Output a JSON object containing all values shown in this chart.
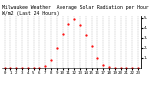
{
  "title": "Milwaukee Weather  Average Solar Radiation per Hour W/m2 (Last 24 Hours)",
  "background_color": "#ffffff",
  "line_color": "red",
  "grid_color": "#999999",
  "hours": [
    0,
    1,
    2,
    3,
    4,
    5,
    6,
    7,
    8,
    9,
    10,
    11,
    12,
    13,
    14,
    15,
    16,
    17,
    18,
    19,
    20,
    21,
    22,
    23
  ],
  "values": [
    0,
    0,
    0,
    0,
    0,
    0,
    2,
    15,
    80,
    200,
    340,
    440,
    490,
    430,
    330,
    220,
    100,
    30,
    5,
    0,
    0,
    0,
    0,
    0
  ],
  "ylim": [
    0,
    520
  ],
  "title_fontsize": 3.5,
  "tick_fontsize": 3.0,
  "y_ticks": [
    100,
    200,
    300,
    400,
    500
  ],
  "y_tick_labels": [
    "1.",
    "2.",
    "3.",
    "4.",
    "5."
  ],
  "figsize": [
    1.6,
    0.87
  ],
  "dpi": 100
}
